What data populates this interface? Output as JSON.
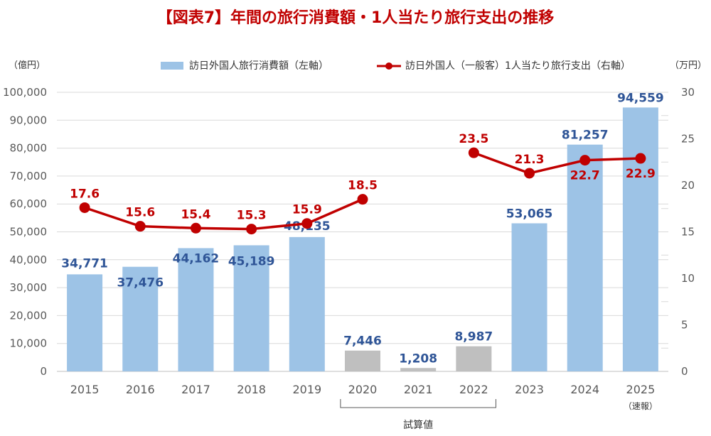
{
  "chart_data": {
    "type": "bar",
    "title": "【図表7】年間の旅行消費額・1人当たり旅行支出の推移",
    "categories": [
      "2015",
      "2016",
      "2017",
      "2018",
      "2019",
      "2020",
      "2021",
      "2022",
      "2023",
      "2024",
      "2025"
    ],
    "category_notes": {
      "2025": "（速報）"
    },
    "bracket": {
      "from": "2020",
      "to": "2022",
      "label": "試算値"
    },
    "left_axis": {
      "unit_label": "（億円）",
      "min": 0,
      "max": 100000,
      "step": 10000,
      "ticks": [
        "0",
        "10,000",
        "20,000",
        "30,000",
        "40,000",
        "50,000",
        "60,000",
        "70,000",
        "80,000",
        "90,000",
        "100,000"
      ]
    },
    "right_axis": {
      "unit_label": "（万円）",
      "min": 0,
      "max": 30,
      "step": 5,
      "ticks": [
        "0",
        "5",
        "10",
        "15",
        "20",
        "25",
        "30"
      ]
    },
    "grid": true,
    "legend_position": "top",
    "series": [
      {
        "name": "訪日外国人旅行消費額（左軸）",
        "type": "bar",
        "axis": "left",
        "color": "#9dc3e6",
        "estimate_color": "#bfbfbf",
        "label_color": "#2f5597",
        "values": [
          34771,
          37476,
          44162,
          45189,
          48135,
          7446,
          1208,
          8987,
          53065,
          81257,
          94559
        ],
        "labels": [
          "34,771",
          "37,476",
          "44,162",
          "45,189",
          "48,135",
          "7,446",
          "1,208",
          "8,987",
          "53,065",
          "81,257",
          "94,559"
        ],
        "estimated": [
          false,
          false,
          false,
          false,
          false,
          true,
          true,
          true,
          false,
          false,
          false
        ]
      },
      {
        "name": "訪日外国人（一般客）1人当たり旅行支出（右軸）",
        "type": "line",
        "axis": "right",
        "color": "#c00000",
        "values": [
          17.6,
          15.6,
          15.4,
          15.3,
          15.9,
          18.5,
          null,
          23.5,
          21.3,
          22.7,
          22.9
        ],
        "labels": [
          "17.6",
          "15.6",
          "15.4",
          "15.3",
          "15.9",
          "18.5",
          "",
          "23.5",
          "21.3",
          "22.7",
          "22.9"
        ],
        "label_position": [
          "above",
          "above",
          "above",
          "above",
          "above",
          "above",
          "above",
          "above",
          "above",
          "below",
          "below"
        ]
      }
    ]
  }
}
